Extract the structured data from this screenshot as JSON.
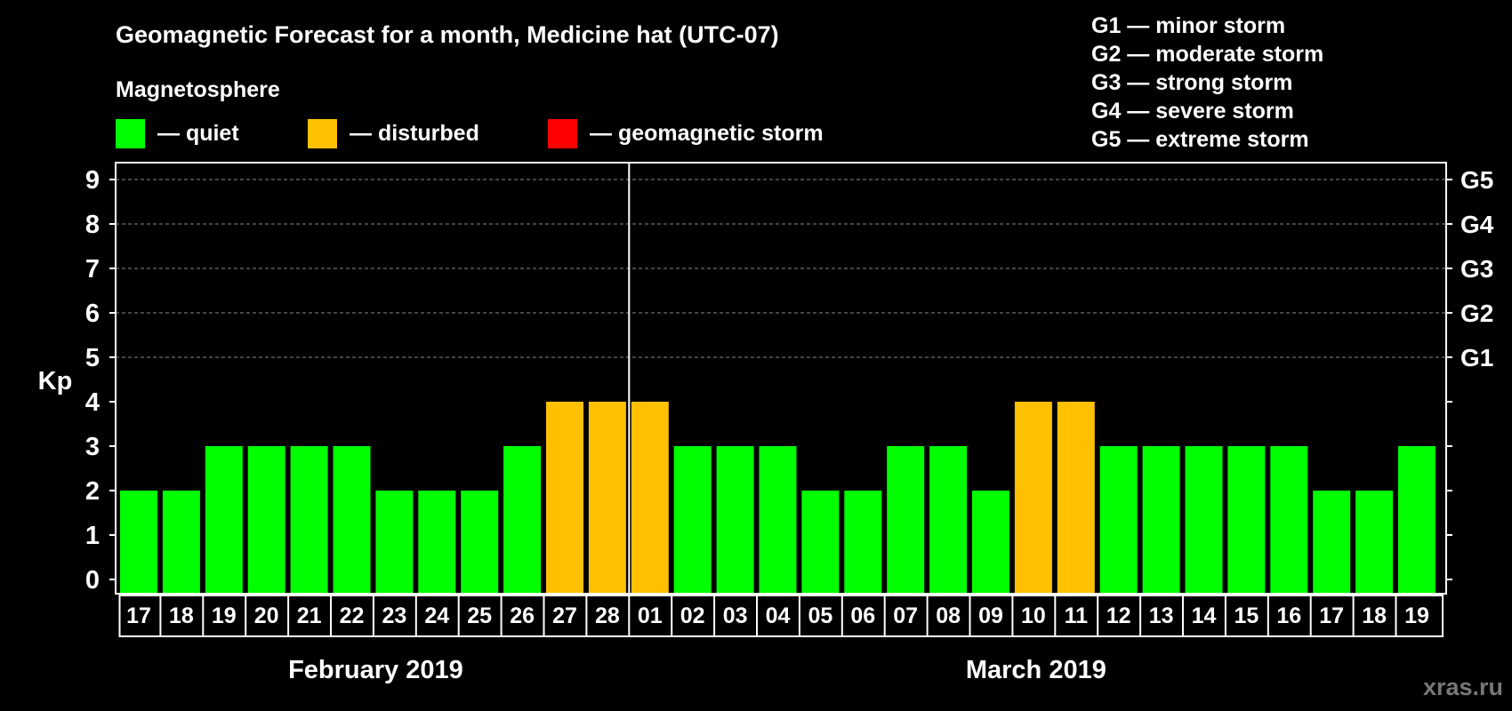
{
  "chart_data": {
    "type": "bar",
    "title": "Geomagnetic Forecast for a month, Medicine hat (UTC-07)",
    "ylabel": "Kp",
    "ylim": [
      0,
      9
    ],
    "yticks": [
      "0",
      "1",
      "2",
      "3",
      "4",
      "5",
      "6",
      "7",
      "8",
      "9"
    ],
    "storm_levels": [
      {
        "kp": 5,
        "label": "G1"
      },
      {
        "kp": 6,
        "label": "G2"
      },
      {
        "kp": 7,
        "label": "G3"
      },
      {
        "kp": 8,
        "label": "G4"
      },
      {
        "kp": 9,
        "label": "G5"
      }
    ],
    "legend_title": "Magnetosphere",
    "legend": [
      {
        "label": "— quiet",
        "color": "#00ff00"
      },
      {
        "label": "— disturbed",
        "color": "#ffc000"
      },
      {
        "label": "— geomagnetic storm",
        "color": "#ff0000"
      }
    ],
    "storm_scale": [
      "G1 — minor storm",
      "G2 — moderate storm",
      "G3 — strong storm",
      "G4 — severe storm",
      "G5 — extreme storm"
    ],
    "categories": [
      "17",
      "18",
      "19",
      "20",
      "21",
      "22",
      "23",
      "24",
      "25",
      "26",
      "27",
      "28",
      "01",
      "02",
      "03",
      "04",
      "05",
      "06",
      "07",
      "08",
      "09",
      "10",
      "11",
      "12",
      "13",
      "14",
      "15",
      "16",
      "17",
      "18",
      "19"
    ],
    "values": [
      2,
      2,
      3,
      3,
      3,
      3,
      2,
      2,
      2,
      3,
      4,
      4,
      4,
      3,
      3,
      3,
      2,
      2,
      3,
      3,
      2,
      4,
      4,
      3,
      3,
      3,
      3,
      3,
      2,
      2,
      3
    ],
    "status": [
      "quiet",
      "quiet",
      "quiet",
      "quiet",
      "quiet",
      "quiet",
      "quiet",
      "quiet",
      "quiet",
      "quiet",
      "disturbed",
      "disturbed",
      "disturbed",
      "quiet",
      "quiet",
      "quiet",
      "quiet",
      "quiet",
      "quiet",
      "quiet",
      "quiet",
      "disturbed",
      "disturbed",
      "quiet",
      "quiet",
      "quiet",
      "quiet",
      "quiet",
      "quiet",
      "quiet",
      "quiet"
    ],
    "months": [
      {
        "label": "February 2019",
        "start": 0,
        "count": 12
      },
      {
        "label": "March 2019",
        "start": 12,
        "count": 19
      }
    ],
    "colors": {
      "quiet": "#00ff00",
      "disturbed": "#ffc000",
      "storm": "#ff0000"
    }
  },
  "watermark": "xras.ru"
}
